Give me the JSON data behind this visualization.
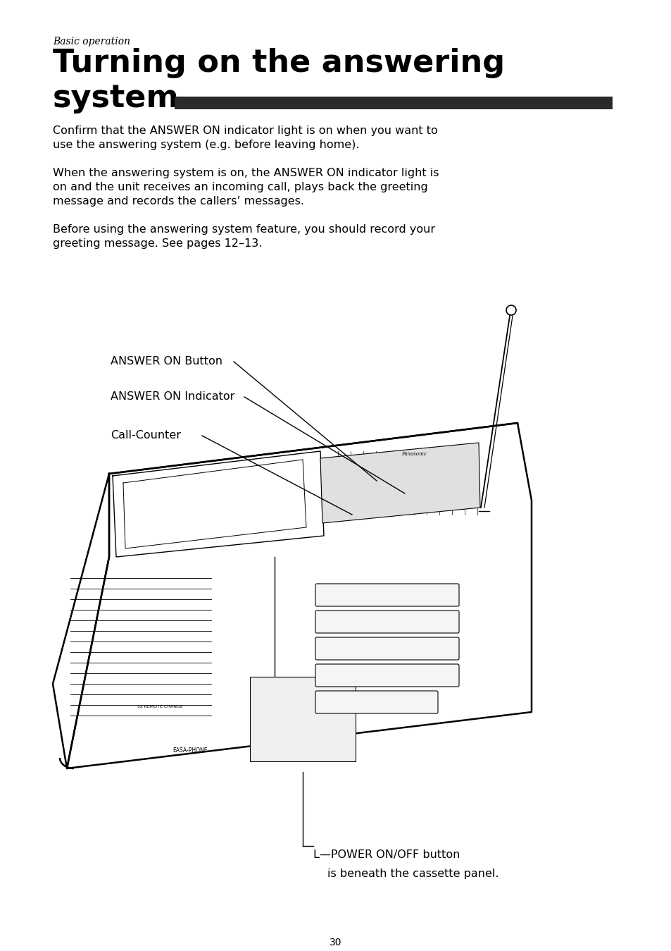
{
  "bg_color": "#ffffff",
  "subtitle": "Basic operation",
  "title_line1": "Turning on the answering",
  "title_line2": "system",
  "title_bar_color": "#2a2a2a",
  "para1_line1": "Confirm that the ANSWER ON indicator light is on when you want to",
  "para1_line2": "use the answering system (e.g. before leaving home).",
  "para2_line1": "When the answering system is on, the ANSWER ON indicator light is",
  "para2_line2": "on and the unit receives an incoming call, plays back the greeting",
  "para2_line3": "message and records the callers’ messages.",
  "para3_line1": "Before using the answering system feature, you should record your",
  "para3_line2": "greeting message. See pages 12–13.",
  "label1": "ANSWER ON Button",
  "label2": "ANSWER ON Indicator",
  "label3": "Call-Counter",
  "label4_line1": "L—POWER ON/OFF button",
  "label4_line2": "is beneath the cassette panel.",
  "page_num": "30",
  "text_fontsize": 11.5,
  "label_fontsize": 11.5
}
